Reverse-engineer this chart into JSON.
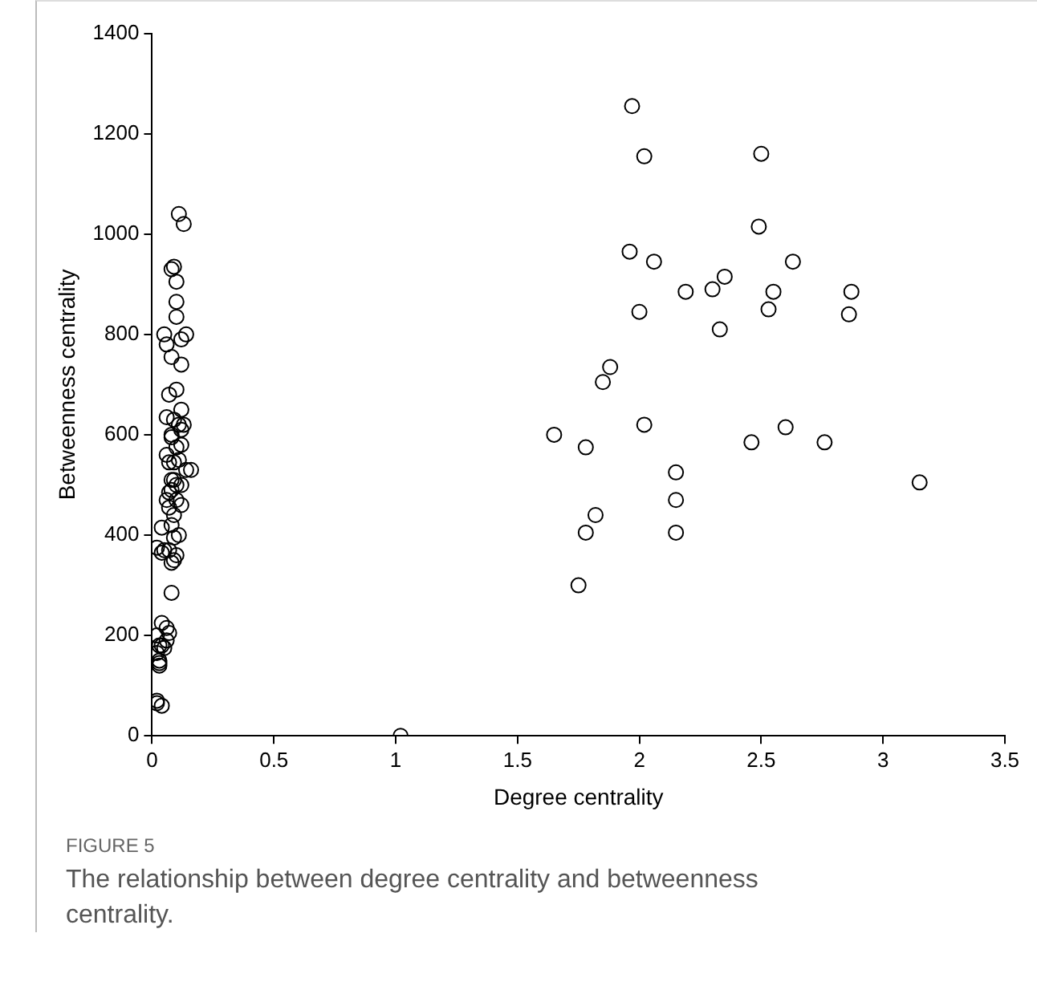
{
  "chart_data": {
    "type": "scatter",
    "xlabel": "Degree centrality",
    "ylabel": "Betweenness centrality",
    "annotations": [
      "FIGURE 5",
      "The relationship between degree centrality and betweenness centrality."
    ],
    "xlim": [
      0,
      3.5
    ],
    "ylim": [
      0,
      1400
    ],
    "xticks": [
      0,
      0.5,
      1,
      1.5,
      2,
      2.5,
      3,
      3.5
    ],
    "yticks": [
      0,
      200,
      400,
      600,
      800,
      1000,
      1200,
      1400
    ],
    "grid": false,
    "legend": false,
    "marker": "circle",
    "series": [
      {
        "color": "#000000",
        "x": [
          0.11,
          0.13,
          0.09,
          0.1,
          0.08,
          0.1,
          0.1,
          0.05,
          0.06,
          0.12,
          0.14,
          0.08,
          0.12,
          0.07,
          0.1,
          0.12,
          0.06,
          0.09,
          0.11,
          0.08,
          0.12,
          0.13,
          0.08,
          0.1,
          0.06,
          0.09,
          0.11,
          0.14,
          0.07,
          0.12,
          0.09,
          0.08,
          0.06,
          0.1,
          0.12,
          0.07,
          0.09,
          0.04,
          0.08,
          0.11,
          0.09,
          0.07,
          0.1,
          0.05,
          0.09,
          0.08,
          0.02,
          0.04,
          0.08,
          0.06,
          0.04,
          0.07,
          0.02,
          0.06,
          0.04,
          0.05,
          0.03,
          0.02,
          0.03,
          0.03,
          0.03,
          0.02,
          0.02,
          0.04,
          0.07,
          0.16,
          0.1,
          0.12,
          0.08,
          1.02,
          1.65,
          1.78,
          1.97,
          2.02,
          2.5,
          1.96,
          2.06,
          2.0,
          2.19,
          2.3,
          2.35,
          2.33,
          2.49,
          2.55,
          2.53,
          2.63,
          2.87,
          2.86,
          1.88,
          1.85,
          2.02,
          2.46,
          2.6,
          2.76,
          2.15,
          2.15,
          2.15,
          1.82,
          1.78,
          1.75,
          3.15
        ],
        "values": [
          1040,
          1020,
          935,
          905,
          930,
          865,
          835,
          800,
          780,
          790,
          800,
          755,
          740,
          680,
          690,
          650,
          635,
          630,
          620,
          600,
          610,
          620,
          595,
          575,
          560,
          545,
          550,
          530,
          545,
          500,
          510,
          490,
          470,
          470,
          460,
          455,
          440,
          415,
          420,
          400,
          395,
          370,
          360,
          370,
          350,
          345,
          375,
          365,
          285,
          215,
          225,
          205,
          200,
          190,
          180,
          175,
          180,
          165,
          150,
          145,
          140,
          70,
          65,
          60,
          485,
          530,
          500,
          580,
          510,
          0,
          600,
          575,
          1255,
          1155,
          1160,
          965,
          945,
          845,
          885,
          890,
          915,
          810,
          1015,
          885,
          850,
          945,
          885,
          840,
          735,
          705,
          620,
          585,
          615,
          585,
          525,
          470,
          405,
          440,
          405,
          300,
          505
        ]
      }
    ]
  }
}
